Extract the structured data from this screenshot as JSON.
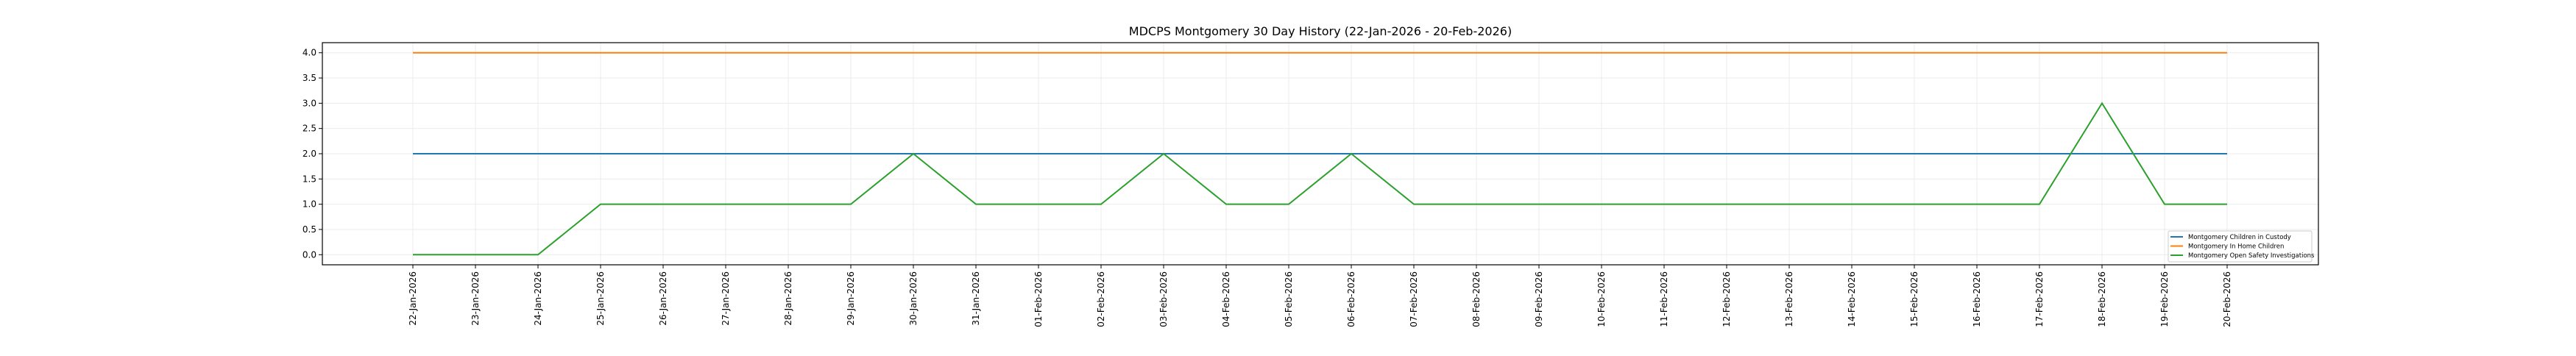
{
  "chart_data": {
    "type": "line",
    "title": "MDCPS Montgomery 30 Day History (22-Jan-2026 - 20-Feb-2026)",
    "xlabel": "",
    "ylabel": "",
    "ylim": [
      -0.2,
      4.2
    ],
    "yticks": [
      "0.0",
      "0.5",
      "1.0",
      "1.5",
      "2.0",
      "2.5",
      "3.0",
      "3.5",
      "4.0"
    ],
    "grid": true,
    "legend_position": "lower-right",
    "categories": [
      "22-Jan-2026",
      "23-Jan-2026",
      "24-Jan-2026",
      "25-Jan-2026",
      "26-Jan-2026",
      "27-Jan-2026",
      "28-Jan-2026",
      "29-Jan-2026",
      "30-Jan-2026",
      "31-Jan-2026",
      "01-Feb-2026",
      "02-Feb-2026",
      "03-Feb-2026",
      "04-Feb-2026",
      "05-Feb-2026",
      "06-Feb-2026",
      "07-Feb-2026",
      "08-Feb-2026",
      "09-Feb-2026",
      "10-Feb-2026",
      "11-Feb-2026",
      "12-Feb-2026",
      "13-Feb-2026",
      "14-Feb-2026",
      "15-Feb-2026",
      "16-Feb-2026",
      "17-Feb-2026",
      "18-Feb-2026",
      "19-Feb-2026",
      "20-Feb-2026"
    ],
    "series": [
      {
        "name": "Montgomery Children in Custody",
        "color": "#1f77b4",
        "values": [
          2,
          2,
          2,
          2,
          2,
          2,
          2,
          2,
          2,
          2,
          2,
          2,
          2,
          2,
          2,
          2,
          2,
          2,
          2,
          2,
          2,
          2,
          2,
          2,
          2,
          2,
          2,
          2,
          2,
          2
        ]
      },
      {
        "name": "Montgomery In Home Children",
        "color": "#ff7f0e",
        "values": [
          4,
          4,
          4,
          4,
          4,
          4,
          4,
          4,
          4,
          4,
          4,
          4,
          4,
          4,
          4,
          4,
          4,
          4,
          4,
          4,
          4,
          4,
          4,
          4,
          4,
          4,
          4,
          4,
          4,
          4
        ]
      },
      {
        "name": "Montgomery Open Safety Investigations",
        "color": "#2ca02c",
        "values": [
          0,
          0,
          0,
          1,
          1,
          1,
          1,
          1,
          2,
          1,
          1,
          1,
          2,
          1,
          1,
          2,
          1,
          1,
          1,
          1,
          1,
          1,
          1,
          1,
          1,
          1,
          1,
          3,
          1,
          1
        ]
      }
    ]
  }
}
